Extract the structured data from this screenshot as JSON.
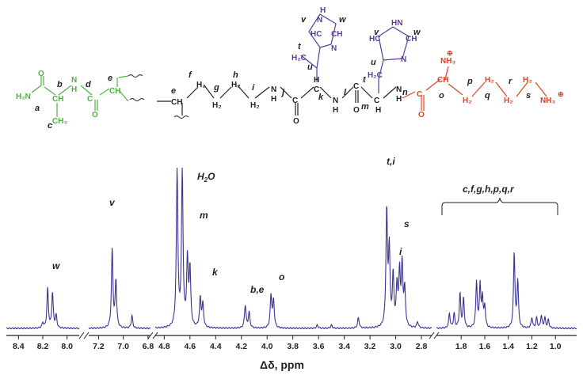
{
  "chart_data": {
    "type": "line",
    "title": "",
    "xlabel": "Δδ, ppm",
    "ylabel": "",
    "grid": false,
    "legend": "none",
    "series_color": "#3a3590",
    "x_ticks": [
      "8.4",
      "8.2",
      "8.0",
      "7.2",
      "7.0",
      "6.8",
      "4.8",
      "4.6",
      "4.4",
      "4.2",
      "4.0",
      "3.8",
      "3.6",
      "3.4",
      "3.2",
      "3.0",
      "2.8",
      "1.8",
      "1.6",
      "1.4",
      "1.2",
      "1.0"
    ],
    "segments": [
      {
        "xlim": [
          8.5,
          7.9
        ],
        "peaks": [
          [
            8.16,
            0.38
          ],
          [
            8.12,
            0.34
          ],
          [
            8.09,
            0.12
          ],
          [
            8.2,
            0.05
          ]
        ]
      },
      {
        "xlim": [
          7.28,
          6.78
        ],
        "peaks": [
          [
            7.09,
            0.75
          ],
          [
            7.06,
            0.45
          ],
          [
            6.93,
            0.12
          ]
        ]
      },
      {
        "xlim": [
          4.87,
          2.72
        ],
        "peaks": [
          [
            4.7,
            1.5
          ],
          [
            4.66,
            1.5
          ],
          [
            4.62,
            0.63
          ],
          [
            4.6,
            0.55
          ],
          [
            4.52,
            0.28
          ],
          [
            4.5,
            0.22
          ],
          [
            4.17,
            0.22
          ],
          [
            4.14,
            0.15
          ],
          [
            3.97,
            0.31
          ],
          [
            3.95,
            0.26
          ],
          [
            3.61,
            0.03
          ],
          [
            3.5,
            0.03
          ],
          [
            3.29,
            0.1
          ],
          [
            3.07,
            1.1
          ],
          [
            3.05,
            0.72
          ],
          [
            3.02,
            0.48
          ],
          [
            2.99,
            0.38
          ],
          [
            2.97,
            0.5
          ],
          [
            2.95,
            0.58
          ],
          [
            2.93,
            0.35
          ],
          [
            2.83,
            0.06
          ]
        ]
      },
      {
        "xlim": [
          2.01,
          0.82
        ],
        "peaks": [
          [
            1.9,
            0.14
          ],
          [
            1.86,
            0.14
          ],
          [
            1.81,
            0.33
          ],
          [
            1.78,
            0.28
          ],
          [
            1.67,
            0.44
          ],
          [
            1.64,
            0.4
          ],
          [
            1.62,
            0.28
          ],
          [
            1.6,
            0.2
          ],
          [
            1.35,
            0.72
          ],
          [
            1.32,
            0.45
          ],
          [
            1.2,
            0.1
          ],
          [
            1.16,
            0.1
          ],
          [
            1.12,
            0.12
          ],
          [
            1.09,
            0.1
          ],
          [
            1.06,
            0.08
          ]
        ]
      }
    ],
    "annotations": [
      "w",
      "v",
      "H2O",
      "m",
      "k",
      "b,e",
      "o",
      "t,i",
      "i",
      "s",
      "c,f,g,h,p,q,r"
    ]
  },
  "structure": {
    "labels": [
      "a",
      "b",
      "c",
      "d",
      "e",
      "f",
      "g",
      "h",
      "i",
      "j",
      "k",
      "l",
      "m",
      "n",
      "o",
      "p",
      "q",
      "r",
      "s",
      "t",
      "u",
      "v",
      "w"
    ],
    "atoms": [
      "H2N",
      "O",
      "CH",
      "CH3",
      "N",
      "H",
      "C",
      "CH2",
      "H2",
      "NH3",
      "HC",
      "HN",
      "N",
      "⊕"
    ]
  }
}
